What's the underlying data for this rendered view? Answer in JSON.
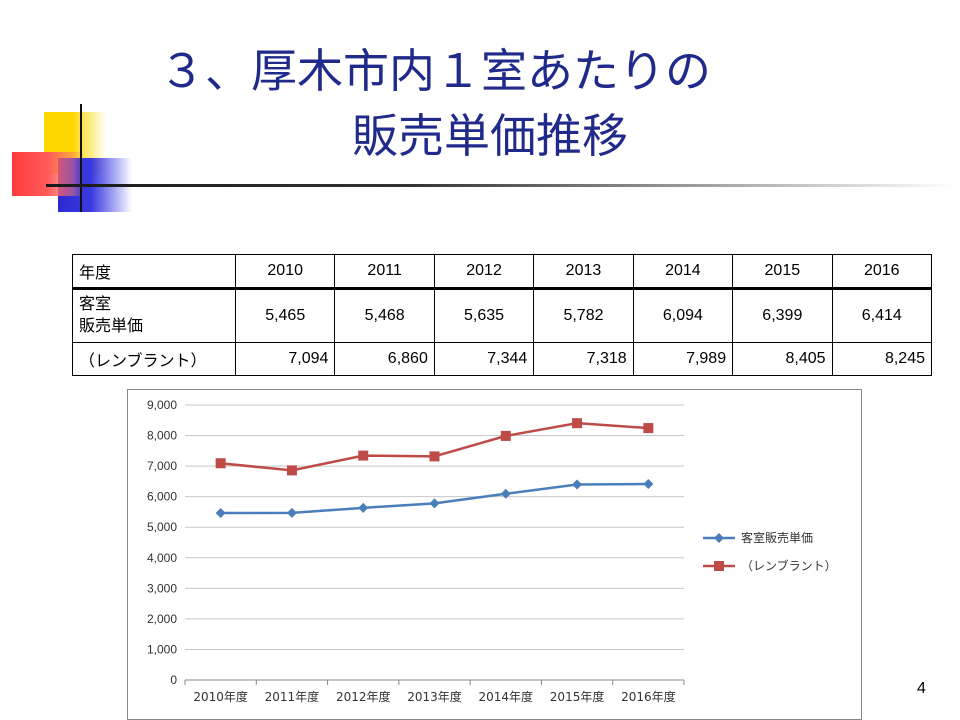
{
  "slide": {
    "title_line1": "３、厚木市内１室あたりの",
    "title_line2": "販売単価推移",
    "page_number": "4"
  },
  "table": {
    "header": [
      "年度",
      "2010",
      "2011",
      "2012",
      "2013",
      "2014",
      "2015",
      "2016"
    ],
    "row1_label_a": "客室",
    "row1_label_b": "販売単価",
    "row1": [
      "5,465",
      "5,468",
      "5,635",
      "5,782",
      "6,094",
      "6,399",
      "6,414"
    ],
    "row2_label": "（レンブラント）",
    "row2": [
      "7,094",
      "6,860",
      "7,344",
      "7,318",
      "7,989",
      "8,405",
      "8,245"
    ]
  },
  "chart_data": {
    "type": "line",
    "categories": [
      "2010年度",
      "2011年度",
      "2012年度",
      "2013年度",
      "2014年度",
      "2015年度",
      "2016年度"
    ],
    "series": [
      {
        "name": "客室販売単価",
        "values": [
          5465,
          5468,
          5635,
          5782,
          6094,
          6399,
          6414
        ],
        "color": "#4a7ebb",
        "marker": "diamond"
      },
      {
        "name": "（レンブラント）",
        "values": [
          7094,
          6860,
          7344,
          7318,
          7989,
          8405,
          8245
        ],
        "color": "#be4b48",
        "marker": "square"
      }
    ],
    "ylim": [
      0,
      9000
    ],
    "yticks": [
      "0",
      "1,000",
      "2,000",
      "3,000",
      "4,000",
      "5,000",
      "6,000",
      "7,000",
      "8,000",
      "9,000"
    ],
    "grid": true,
    "legend": "right"
  }
}
